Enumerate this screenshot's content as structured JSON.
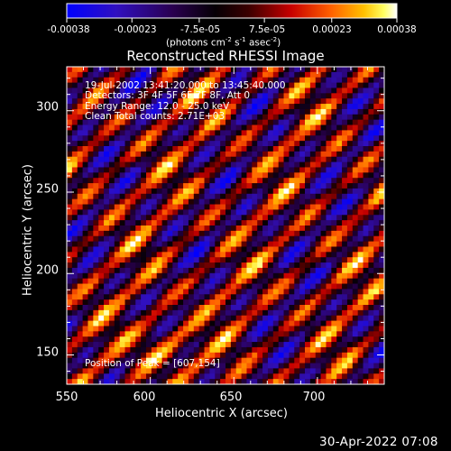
{
  "colorbar": {
    "tick_labels": [
      "-0.00038",
      "-0.00023",
      "-7.5e-05",
      "7.5e-05",
      "0.00023",
      "0.00038"
    ],
    "units_text": "(photons cm",
    "units_sup1": "-2",
    "units_mid": " s",
    "units_sup2": "-1",
    "units_mid2": " asec",
    "units_sup3": "-2",
    "units_end": ")",
    "range": [
      -0.00038,
      0.00038
    ]
  },
  "title": "Reconstructed RHESSI Image",
  "info": {
    "time": "19-Jul-2002 13:41:20.000 to 13:45:40.000",
    "detectors": "Detectors: 3F 4F 5F 6F 7F 8F, Att 0",
    "energy": "Energy Range: 12.0 - 25.0 keV",
    "clean": "Clean     Total counts: 2.71E+03"
  },
  "peak": "Position of Peak = [607,154]",
  "footer": "30-Apr-2022 07:08",
  "chart_data": {
    "type": "heatmap",
    "title": "Reconstructed RHESSI Image",
    "xlabel": "Heliocentric X (arcsec)",
    "ylabel": "Heliocentric Y (arcsec)",
    "xlim": [
      550,
      740
    ],
    "ylim": [
      132,
      327
    ],
    "x_ticks": [
      550,
      600,
      650,
      700
    ],
    "y_ticks": [
      150,
      200,
      250,
      300
    ],
    "color_scale": {
      "min": -0.00038,
      "max": 0.00038,
      "colors": [
        "#0000ff",
        "#4a00a0",
        "#1a0020",
        "#000000",
        "#500000",
        "#cc0000",
        "#ff6a00",
        "#ffc000",
        "#ffff80",
        "#ffffff"
      ]
    },
    "peak_position": [
      607,
      154
    ],
    "pattern": "diagonal fringe stripes running upper-left to lower-right with bright blobs",
    "grid": false
  }
}
